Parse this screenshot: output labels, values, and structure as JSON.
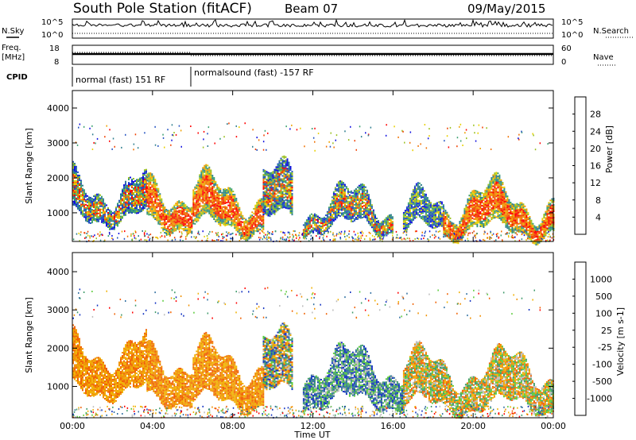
{
  "header": {
    "title": "South Pole Station (fitACF)",
    "beam": "Beam 07",
    "date": "09/May/2015"
  },
  "strip_panels": {
    "nsky": {
      "label": "N.Sky",
      "ticks": [
        "10^5",
        "10^0"
      ],
      "right_label": "N.Search",
      "right_ticks": [
        "10^5",
        "10^0"
      ]
    },
    "freq": {
      "label_line1": "Freq.",
      "label_line2": "[MHz]",
      "ticks": [
        "18",
        "8"
      ],
      "right_label": "Nave",
      "right_ticks": [
        "60",
        "0"
      ]
    },
    "cpid": {
      "label": "CPID",
      "segments": [
        {
          "text": "normal (fast) 151 RF",
          "start_hour": 0,
          "end_hour": 6
        },
        {
          "text": "normalsound (fast) -157 RF",
          "start_hour": 6,
          "end_hour": 24
        }
      ]
    }
  },
  "chart_data": [
    {
      "type": "heatmap",
      "name": "power",
      "ylabel": "Slant Range [km]",
      "xlim": [
        0,
        24
      ],
      "ylim": [
        180,
        4500
      ],
      "yticks": [
        "1000",
        "2000",
        "3000",
        "4000"
      ],
      "colorbar": {
        "label": "Power [dB]",
        "tick_labels": [
          "4",
          "8",
          "12",
          "16",
          "20",
          "24",
          "28"
        ],
        "colors": [
          "#1010e0",
          "#2050c0",
          "#2e7e8e",
          "#3aa070",
          "#9ac020",
          "#e8d000",
          "#f0a000",
          "#f07000",
          "#f04000",
          "#ff0000"
        ]
      },
      "regions": [
        {
          "t0": 0.0,
          "t1": 3.7,
          "r0": 900,
          "r1": 1800,
          "level": "mid"
        },
        {
          "t0": 3.7,
          "t1": 6.0,
          "r0": 700,
          "r1": 1700,
          "level": "high"
        },
        {
          "t0": 6.0,
          "t1": 9.5,
          "r0": 600,
          "r1": 1600,
          "level": "high"
        },
        {
          "t0": 9.5,
          "t1": 11.0,
          "r0": 800,
          "r1": 1900,
          "level": "mid"
        },
        {
          "t0": 11.5,
          "t1": 16.0,
          "r0": 600,
          "r1": 1300,
          "level": "mid"
        },
        {
          "t0": 16.5,
          "t1": 18.5,
          "r0": 500,
          "r1": 1100,
          "level": "low"
        },
        {
          "t0": 18.5,
          "t1": 24.0,
          "r0": 500,
          "r1": 1400,
          "level": "high"
        }
      ]
    },
    {
      "type": "heatmap",
      "name": "velocity",
      "ylabel": "Slant Range [km]",
      "xlabel": "Time UT",
      "xlim": [
        0,
        24
      ],
      "ylim": [
        180,
        4500
      ],
      "yticks": [
        "1000",
        "2000",
        "3000",
        "4000"
      ],
      "xticks": [
        "00:00",
        "04:00",
        "08:00",
        "12:00",
        "16:00",
        "20:00",
        "00:00"
      ],
      "colorbar": {
        "label": "Velocity [m s-1]",
        "tick_labels": [
          "1000",
          "500",
          "100",
          "25",
          "-25",
          "-100",
          "-500",
          "-1000"
        ],
        "colors": [
          "#1030c0",
          "#2e6ea0",
          "#3e9a6a",
          "#5acb3a",
          "#bcbcbc",
          "#f0b000",
          "#f09000",
          "#f06000",
          "#ff0000"
        ]
      },
      "regions": [
        {
          "t0": 0.0,
          "t1": 3.7,
          "r0": 900,
          "r1": 2000,
          "level": "neg"
        },
        {
          "t0": 3.7,
          "t1": 6.0,
          "r0": 700,
          "r1": 1800,
          "level": "neg"
        },
        {
          "t0": 6.0,
          "t1": 9.5,
          "r0": 600,
          "r1": 1700,
          "level": "neg"
        },
        {
          "t0": 9.5,
          "t1": 11.0,
          "r0": 800,
          "r1": 2000,
          "level": "mix"
        },
        {
          "t0": 11.5,
          "t1": 16.5,
          "r0": 600,
          "r1": 1600,
          "level": "pos"
        },
        {
          "t0": 16.5,
          "t1": 24.0,
          "r0": 500,
          "r1": 1500,
          "level": "negmix"
        }
      ]
    }
  ]
}
